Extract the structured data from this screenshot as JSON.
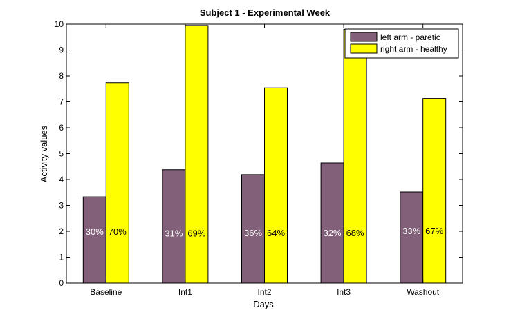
{
  "chart_data": {
    "type": "bar",
    "title": "Subject 1 - Experimental Week",
    "xlabel": "Days",
    "ylabel": "Activity values",
    "ylim": [
      0,
      10
    ],
    "yticks": [
      0,
      1,
      2,
      3,
      4,
      5,
      6,
      7,
      8,
      9,
      10
    ],
    "categories": [
      "Baseline",
      "Int1",
      "Int2",
      "Int3",
      "Washout"
    ],
    "series": [
      {
        "name": "left arm - paretic",
        "color": "#826079",
        "label_color": "#ffffff",
        "values": [
          3.33,
          4.38,
          4.19,
          4.64,
          3.52
        ],
        "labels": [
          "30%",
          "31%",
          "36%",
          "32%",
          "33%"
        ],
        "label_y": [
          2.0,
          1.93,
          1.95,
          1.95,
          2.03
        ]
      },
      {
        "name": "right arm - healthy",
        "color": "#ffff00",
        "label_color": "#000000",
        "values": [
          7.74,
          9.95,
          7.54,
          9.8,
          7.13
        ],
        "labels": [
          "70%",
          "69%",
          "64%",
          "68%",
          "67%"
        ],
        "label_y": [
          2.0,
          1.93,
          1.95,
          1.95,
          2.03
        ]
      }
    ],
    "legend_position": "top-right",
    "grid": false
  }
}
